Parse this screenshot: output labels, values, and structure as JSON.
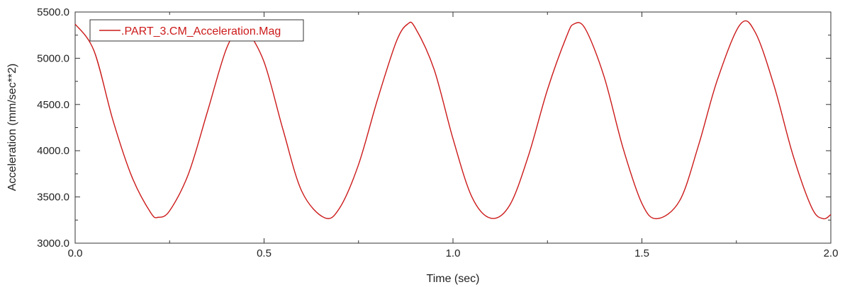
{
  "chart_data": {
    "type": "line",
    "title": "",
    "xlabel": "Time (sec)",
    "ylabel": "Acceleration (mm/sec**2)",
    "xlim": [
      0.0,
      2.0
    ],
    "ylim": [
      3000.0,
      5500.0
    ],
    "x_ticks": [
      0.0,
      0.5,
      1.0,
      1.5,
      2.0
    ],
    "x_tick_labels": [
      "0.0",
      "0.5",
      "1.0",
      "1.5",
      "2.0"
    ],
    "y_ticks": [
      3000.0,
      3500.0,
      4000.0,
      4500.0,
      5000.0,
      5500.0
    ],
    "y_tick_labels": [
      "3000.0",
      "3500.0",
      "4000.0",
      "4500.0",
      "5000.0",
      "5500.0"
    ],
    "grid": false,
    "legend_position": "top-left",
    "series": [
      {
        "name": ".PART_3.CM_Acceleration.Mag",
        "color": "#cc1a1a",
        "x": [
          0.0,
          0.05,
          0.1,
          0.15,
          0.2,
          0.22,
          0.25,
          0.3,
          0.35,
          0.4,
          0.44,
          0.45,
          0.5,
          0.55,
          0.6,
          0.66,
          0.7,
          0.75,
          0.8,
          0.85,
          0.88,
          0.9,
          0.95,
          1.0,
          1.05,
          1.1,
          1.15,
          1.2,
          1.25,
          1.3,
          1.32,
          1.35,
          1.4,
          1.45,
          1.5,
          1.54,
          1.6,
          1.65,
          1.7,
          1.76,
          1.8,
          1.85,
          1.9,
          1.95,
          1.98,
          2.0
        ],
        "y": [
          5370,
          5080,
          4330,
          3720,
          3330,
          3280,
          3350,
          3750,
          4420,
          5100,
          5365,
          5340,
          4960,
          4230,
          3560,
          3275,
          3380,
          3850,
          4550,
          5180,
          5370,
          5330,
          4880,
          4130,
          3500,
          3270,
          3410,
          3950,
          4660,
          5230,
          5370,
          5320,
          4800,
          4030,
          3430,
          3265,
          3460,
          4060,
          4770,
          5365,
          5280,
          4700,
          3950,
          3380,
          3265,
          3310
        ]
      }
    ]
  }
}
